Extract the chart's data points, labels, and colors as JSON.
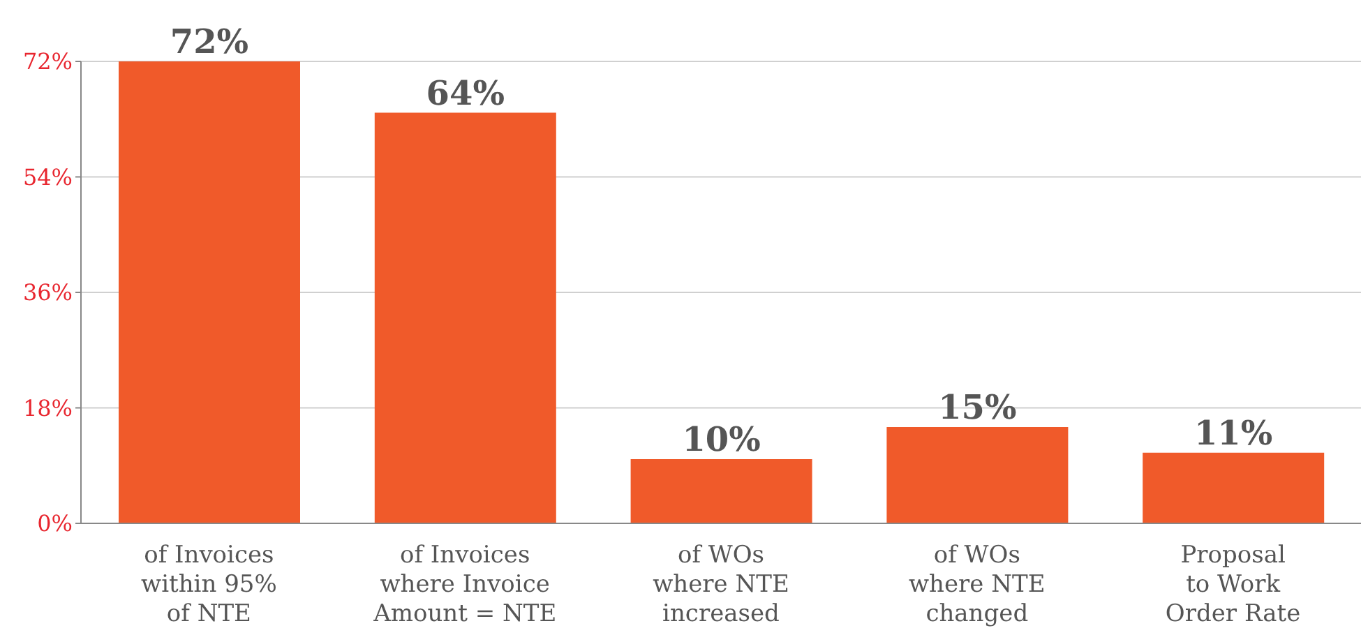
{
  "chart_data": {
    "type": "bar",
    "categories": [
      "of Invoices\nwithin 95%\nof NTE",
      "of Invoices\nwhere Invoice\nAmount = NTE",
      "of WOs\nwhere NTE\nincreased",
      "of WOs\nwhere NTE\nchanged",
      "Proposal\nto Work\nOrder Rate"
    ],
    "values": [
      72,
      64,
      10,
      15,
      11
    ],
    "value_labels": [
      "72%",
      "64%",
      "10%",
      "15%",
      "11%"
    ],
    "color": "#f05a2a",
    "ylim": [
      0,
      72
    ],
    "yticks": [
      {
        "value": 0,
        "label": "0%"
      },
      {
        "value": 18,
        "label": "18%"
      },
      {
        "value": 36,
        "label": "36%"
      },
      {
        "value": 54,
        "label": "54%"
      },
      {
        "value": 72,
        "label": "72%"
      }
    ],
    "grid": "y",
    "legend": false
  }
}
